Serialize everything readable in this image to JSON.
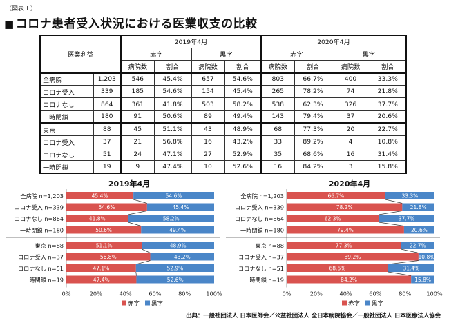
{
  "figure_label": "（図表１）",
  "title": "コロナ患者受入状況における医業収支の比較",
  "source": "出典：一般社団法人 日本医師会／公益社団法人 全日本病院協会／一般社団法人 日本医療法人協会",
  "table": {
    "header_profit": "医業利益",
    "year_2019": "2019年4月",
    "year_2020": "2020年4月",
    "red_label": "赤字",
    "black_label": "黒字",
    "col_hospitals": "病院数",
    "col_ratio": "割合",
    "rows": [
      {
        "label": "全病院",
        "total": "1,203",
        "v": [
          "546",
          "45.4%",
          "657",
          "54.6%",
          "803",
          "66.7%",
          "400",
          "33.3%"
        ]
      },
      {
        "label": "コロナ受入",
        "total": "339",
        "v": [
          "185",
          "54.6%",
          "154",
          "45.4%",
          "265",
          "78.2%",
          "74",
          "21.8%"
        ]
      },
      {
        "label": "コロナなし",
        "total": "864",
        "v": [
          "361",
          "41.8%",
          "503",
          "58.2%",
          "538",
          "62.3%",
          "326",
          "37.7%"
        ]
      },
      {
        "label": "一時閉鎖",
        "total": "180",
        "v": [
          "91",
          "50.6%",
          "89",
          "49.4%",
          "143",
          "79.4%",
          "37",
          "20.6%"
        ]
      },
      {
        "label": "東京",
        "total": "88",
        "v": [
          "45",
          "51.1%",
          "43",
          "48.9%",
          "68",
          "77.3%",
          "20",
          "22.7%"
        ]
      },
      {
        "label": "コロナ受入",
        "total": "37",
        "v": [
          "21",
          "56.8%",
          "16",
          "43.2%",
          "33",
          "89.2%",
          "4",
          "10.8%"
        ]
      },
      {
        "label": "コロナなし",
        "total": "51",
        "v": [
          "24",
          "47.1%",
          "27",
          "52.9%",
          "35",
          "68.6%",
          "16",
          "31.4%"
        ]
      },
      {
        "label": "一時閉鎖",
        "total": "19",
        "v": [
          "9",
          "47.4%",
          "10",
          "52.6%",
          "16",
          "84.2%",
          "3",
          "15.8%"
        ]
      }
    ]
  },
  "colors": {
    "red": "#d9534f",
    "blue": "#4a86c8",
    "connector": "#333333"
  },
  "chart_data": [
    {
      "type": "bar",
      "stacked": "percent",
      "orientation": "horizontal",
      "title": "2019年4月",
      "categories": [
        "全病院 n=1,203",
        "コロナ受入 n=339",
        "コロナなし n=864",
        "一時閉鎖 n=180",
        "東京 n=88",
        "コロナ受入 n=37",
        "コロナなし n=51",
        "一時閉鎖 n=19"
      ],
      "series": [
        {
          "name": "赤字",
          "values": [
            45.4,
            54.6,
            41.8,
            50.6,
            51.1,
            56.8,
            47.1,
            47.4
          ],
          "labels": [
            "45.4%",
            "54.6%",
            "41.8%",
            "50.6%",
            "51.1%",
            "56.8%",
            "47.1%",
            "47.4%"
          ]
        },
        {
          "name": "黒字",
          "values": [
            54.6,
            45.4,
            58.2,
            49.4,
            48.9,
            43.2,
            52.9,
            52.6
          ],
          "labels": [
            "54.6%",
            "45.4%",
            "58.2%",
            "49.4%",
            "48.9%",
            "43.2%",
            "52.9%",
            "52.6%"
          ]
        }
      ],
      "xlim": [
        0,
        100
      ],
      "xticks": [
        "0%",
        "20%",
        "40%",
        "60%",
        "80%",
        "100%"
      ],
      "legend": "bottom"
    },
    {
      "type": "bar",
      "stacked": "percent",
      "orientation": "horizontal",
      "title": "2020年4月",
      "categories": [
        "全病院 n=1,203",
        "コロナ受入 n=339",
        "コロナなし n=864",
        "一時閉鎖 n=180",
        "東京 n=88",
        "コロナ受入 n=37",
        "コロナなし n=51",
        "一時閉鎖 n=19"
      ],
      "series": [
        {
          "name": "赤字",
          "values": [
            66.7,
            78.2,
            62.3,
            79.4,
            77.3,
            89.2,
            68.6,
            84.2
          ],
          "labels": [
            "66.7%",
            "78.2%",
            "62.3%",
            "79.4%",
            "77.3%",
            "89.2%",
            "68.6%",
            "84.2%"
          ]
        },
        {
          "name": "黒字",
          "values": [
            33.3,
            21.8,
            37.7,
            20.6,
            22.7,
            10.8,
            31.4,
            15.8
          ],
          "labels": [
            "33.3%",
            "21.8%",
            "37.7%",
            "20.6%",
            "22.7%",
            "10.8%",
            "31.4%",
            "15.8%"
          ]
        }
      ],
      "xlim": [
        0,
        100
      ],
      "xticks": [
        "0%",
        "20%",
        "40%",
        "60%",
        "80%",
        "100%"
      ],
      "legend": "bottom"
    }
  ]
}
